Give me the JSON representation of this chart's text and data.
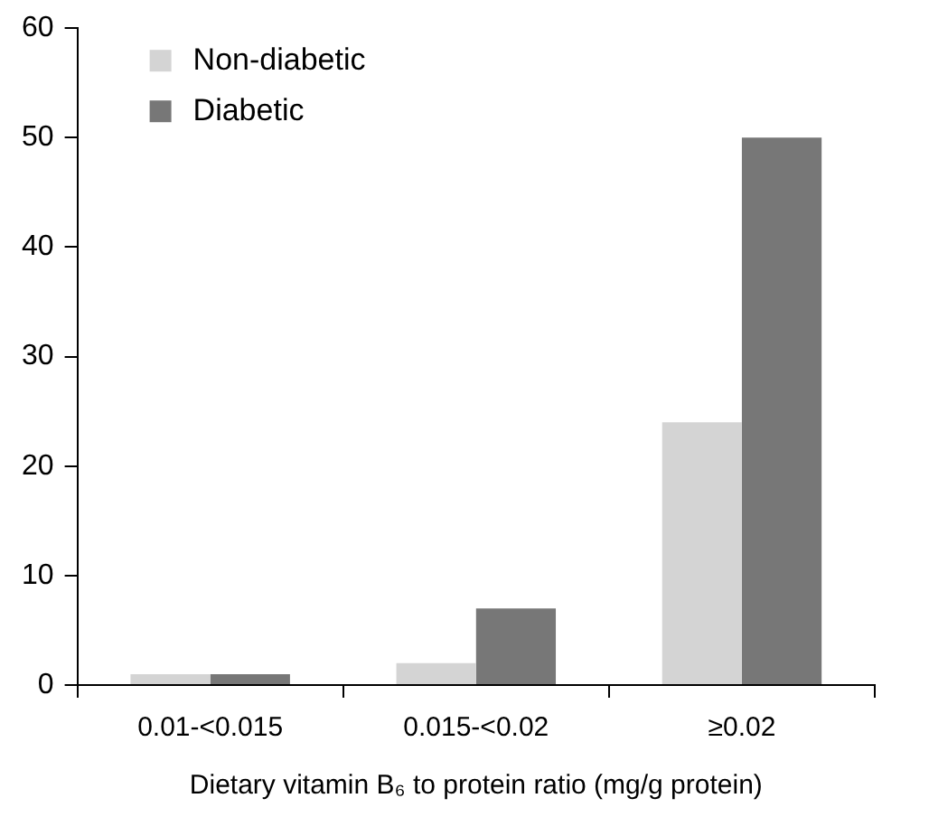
{
  "chart_data": {
    "type": "bar",
    "xlabel": "Dietary vitamin B₆ to protein ratio (mg/g protein)",
    "categories": [
      "0.01-<0.015",
      "0.015-<0.02",
      "≥0.02"
    ],
    "series": [
      {
        "name": "Non-diabetic",
        "color": "#d4d4d4",
        "values": [
          1,
          2,
          24
        ]
      },
      {
        "name": "Diabetic",
        "color": "#777777",
        "values": [
          1,
          7,
          50
        ]
      }
    ],
    "ylim": [
      0,
      60
    ],
    "yticks": [
      0,
      10,
      20,
      30,
      40,
      50,
      60
    ],
    "legend": "top left"
  }
}
